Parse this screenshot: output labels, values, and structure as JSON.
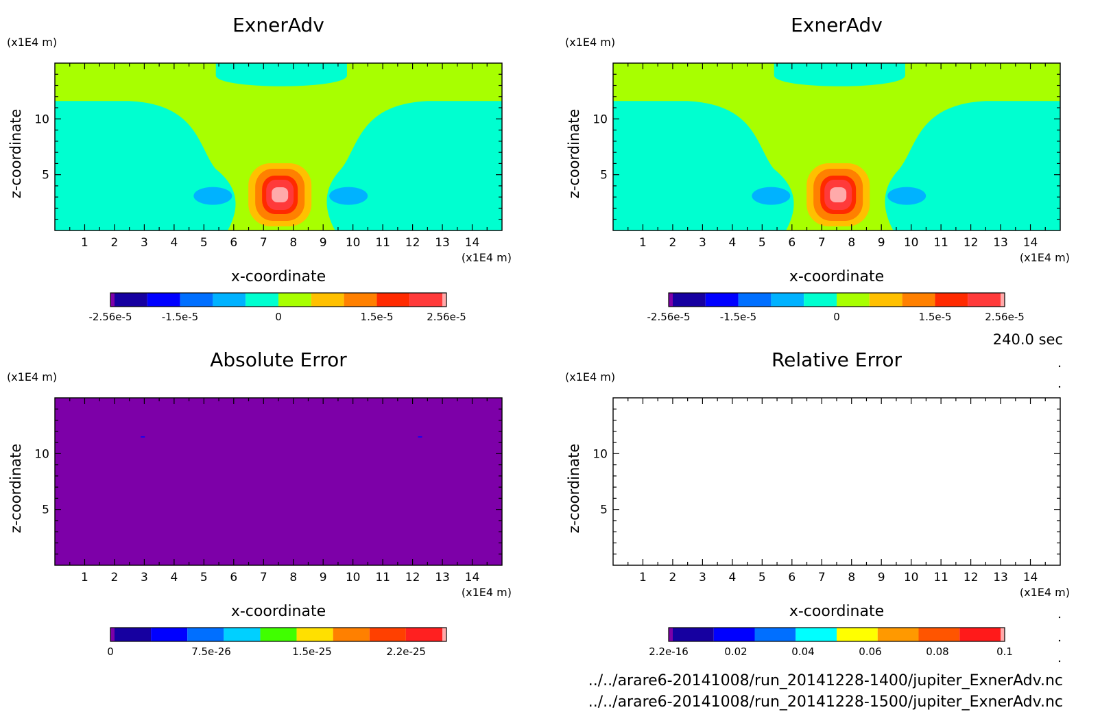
{
  "time_label": "240.0 sec",
  "files": [
    "../../arare6-20141008/run_20141228-1400/jupiter_ExnerAdv.nc",
    "../../arare6-20141008/run_20141228-1500/jupiter_ExnerAdv.nc"
  ],
  "chart_data": [
    {
      "type": "heatmap",
      "title": "ExnerAdv",
      "xlabel": "x-coordinate",
      "ylabel": "z-coordinate",
      "x_unit": "(x1E4 m)",
      "y_unit": "(x1E4 m)",
      "xlim": [
        0,
        15
      ],
      "ylim": [
        0,
        15
      ],
      "x_ticks": [
        1,
        2,
        3,
        4,
        5,
        6,
        7,
        8,
        9,
        10,
        11,
        12,
        13,
        14
      ],
      "y_ticks": [
        5,
        10
      ],
      "field": "exner",
      "colorbar": {
        "colors": [
          "#7d00a8",
          "#1600a0",
          "#0000ff",
          "#006fff",
          "#00b2ff",
          "#00ffd0",
          "#a8ff00",
          "#ffc000",
          "#ff8000",
          "#ff2a00",
          "#ff3a3a",
          "#ffaaaa"
        ],
        "edge_levels": [
          -2.56e-05,
          2.56e-05
        ],
        "tick_labels": [
          "-2.56e-5",
          "-1.5e-5",
          "0",
          "1.5e-5",
          "2.56e-5"
        ],
        "tick_values": [
          -2.56e-05,
          -1.5e-05,
          0,
          1.5e-05,
          2.56e-05
        ]
      }
    },
    {
      "type": "heatmap",
      "title": "ExnerAdv",
      "xlabel": "x-coordinate",
      "ylabel": "z-coordinate",
      "x_unit": "(x1E4 m)",
      "y_unit": "(x1E4 m)",
      "xlim": [
        0,
        15
      ],
      "ylim": [
        0,
        15
      ],
      "x_ticks": [
        1,
        2,
        3,
        4,
        5,
        6,
        7,
        8,
        9,
        10,
        11,
        12,
        13,
        14
      ],
      "y_ticks": [
        5,
        10
      ],
      "field": "exner",
      "colorbar": {
        "colors": [
          "#7d00a8",
          "#1600a0",
          "#0000ff",
          "#006fff",
          "#00b2ff",
          "#00ffd0",
          "#a8ff00",
          "#ffc000",
          "#ff8000",
          "#ff2a00",
          "#ff3a3a",
          "#ffaaaa"
        ],
        "edge_levels": [
          -2.56e-05,
          2.56e-05
        ],
        "tick_labels": [
          "-2.56e-5",
          "-1.5e-5",
          "0",
          "1.5e-5",
          "2.56e-5"
        ],
        "tick_values": [
          -2.56e-05,
          -1.5e-05,
          0,
          1.5e-05,
          2.56e-05
        ]
      }
    },
    {
      "type": "heatmap",
      "title": "Absolute Error",
      "xlabel": "x-coordinate",
      "ylabel": "z-coordinate",
      "x_unit": "(x1E4 m)",
      "y_unit": "(x1E4 m)",
      "xlim": [
        0,
        15
      ],
      "ylim": [
        0,
        15
      ],
      "x_ticks": [
        1,
        2,
        3,
        4,
        5,
        6,
        7,
        8,
        9,
        10,
        11,
        12,
        13,
        14
      ],
      "y_ticks": [
        5,
        10
      ],
      "field": "uniform",
      "fill_color": "#7d00a8",
      "markers": [
        {
          "x": 2.95,
          "z": 11.5
        },
        {
          "x": 12.25,
          "z": 11.5
        }
      ],
      "colorbar": {
        "colors": [
          "#7d00a8",
          "#1600a0",
          "#0000ff",
          "#006fff",
          "#00d0ff",
          "#40ff00",
          "#ffe000",
          "#ff8000",
          "#ff4000",
          "#ff2020",
          "#ffaaaa"
        ],
        "edge_levels": [
          0,
          2.5e-25
        ],
        "tick_labels": [
          "0",
          "7.5e-26",
          "1.5e-25",
          "2.2e-25"
        ],
        "tick_values": [
          0,
          7.5e-26,
          1.5e-25,
          2.2e-25
        ]
      }
    },
    {
      "type": "heatmap",
      "title": "Relative Error",
      "xlabel": "x-coordinate",
      "ylabel": "z-coordinate",
      "x_unit": "(x1E4 m)",
      "y_unit": "(x1E4 m)",
      "xlim": [
        0,
        15
      ],
      "ylim": [
        0,
        15
      ],
      "x_ticks": [
        1,
        2,
        3,
        4,
        5,
        6,
        7,
        8,
        9,
        10,
        11,
        12,
        13,
        14
      ],
      "y_ticks": [
        5,
        10
      ],
      "field": "empty",
      "fill_color": "#ffffff",
      "colorbar": {
        "colors": [
          "#7d00a8",
          "#1600a0",
          "#0000ff",
          "#006fff",
          "#00ffff",
          "#ffff00",
          "#ff9900",
          "#ff5500",
          "#ff1a1a",
          "#ffaaaa"
        ],
        "edge_levels": [
          2.2e-16,
          0.1
        ],
        "tick_labels": [
          "2.2e-16",
          "0.02",
          "0.04",
          "0.06",
          "0.08",
          "0.1"
        ],
        "tick_values": [
          2.2e-16,
          0.02,
          0.04,
          0.06,
          0.08,
          0.1
        ]
      }
    }
  ]
}
